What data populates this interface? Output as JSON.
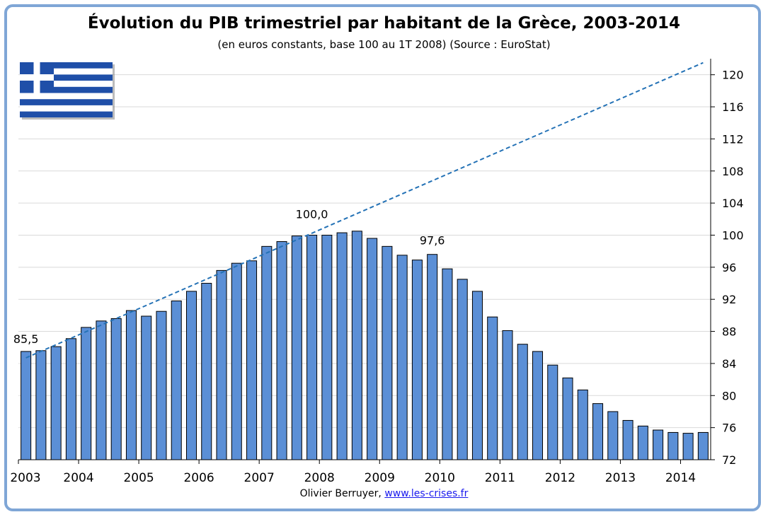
{
  "chart_data": {
    "type": "bar",
    "title": "Évolution du PIB trimestriel par habitant de la Grèce, 2003-2014",
    "subtitle": "(en euros constants, base 100 au 1T 2008) (Source : EuroStat)",
    "x_tick_labels": [
      "2003",
      "2004",
      "2005",
      "2006",
      "2007",
      "2008",
      "2009",
      "2010",
      "2011",
      "2012",
      "2013",
      "2014"
    ],
    "y_tick_labels": [
      "72",
      "76",
      "80",
      "84",
      "88",
      "92",
      "96",
      "100",
      "104",
      "108",
      "112",
      "116",
      "120"
    ],
    "ylim": [
      72,
      122
    ],
    "y_axis_side": "right",
    "grid": true,
    "bar_color": "#5b8fd6",
    "trend_color": "#2472b6",
    "series": [
      {
        "type": "bar",
        "values": [
          85.5,
          85.6,
          86.1,
          87.1,
          88.5,
          89.3,
          89.6,
          90.6,
          89.9,
          90.5,
          91.8,
          93.0,
          94.0,
          95.6,
          96.5,
          96.8,
          98.6,
          99.2,
          99.9,
          100.0,
          100.0,
          100.3,
          100.5,
          99.6,
          98.6,
          97.5,
          96.9,
          97.6,
          95.8,
          94.5,
          93.0,
          89.8,
          88.1,
          86.4,
          85.5,
          83.8,
          82.2,
          80.7,
          79.0,
          78.0,
          76.9,
          76.2,
          75.7,
          75.4,
          75.3,
          75.4
        ]
      },
      {
        "type": "line",
        "style": "dashed",
        "points": [
          [
            0,
            84.7
          ],
          [
            45,
            121.5
          ]
        ]
      }
    ],
    "annotations": [
      {
        "text": "85,5",
        "index": 0,
        "value": 85.5
      },
      {
        "text": "100,0",
        "index": 19,
        "value": 100.0
      },
      {
        "text": "97,6",
        "index": 27,
        "value": 97.6
      }
    ]
  },
  "credit": {
    "author": "Olivier Berruyer,",
    "link": "www.les-crises.fr"
  },
  "flag_name": "greece-flag"
}
